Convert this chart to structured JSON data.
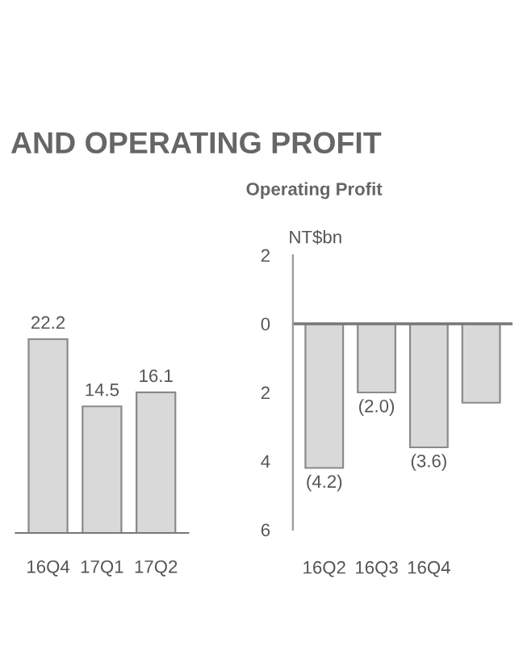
{
  "chart_data": [
    {
      "type": "bar",
      "title": "AND OPERATING PROFIT",
      "categories": [
        "16Q4",
        "17Q1",
        "17Q2"
      ],
      "values": [
        22.2,
        14.5,
        16.1
      ],
      "color": "#d9d9d9",
      "data_labels": true,
      "grid": false,
      "legend": false
    },
    {
      "type": "bar",
      "title": "Operating Profit",
      "ylabel": "NT$bn",
      "categories": [
        "16Q2",
        "16Q3",
        "16Q4",
        null
      ],
      "values": [
        -4.2,
        -2.0,
        -3.6,
        -2.3
      ],
      "value_labels": [
        "(4.2)",
        "(2.0)",
        "(3.6)",
        null
      ],
      "color": "#d9d9d9",
      "ylim": [
        -6,
        2
      ],
      "yticks": [
        {
          "value": 2,
          "label": "2"
        },
        0,
        {
          "value": -2,
          "label": "2"
        },
        {
          "value": -4,
          "label": "4"
        },
        {
          "value": -6,
          "label": "6"
        }
      ],
      "ref_lines": [
        {
          "axis": "y",
          "value": 0
        }
      ],
      "grid": false,
      "legend": false
    }
  ]
}
